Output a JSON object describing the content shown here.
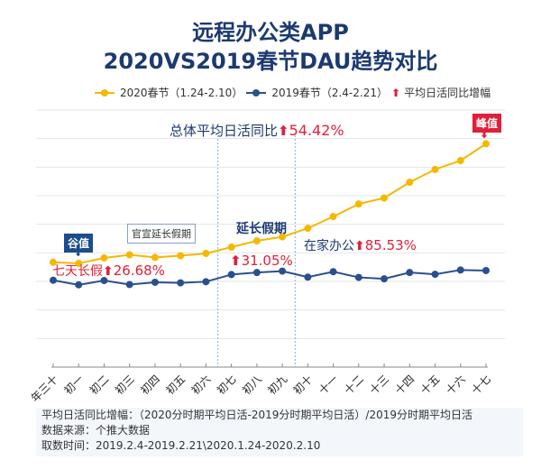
{
  "title": {
    "line1": "远程办公类APP",
    "line2": "2020VS2019春节DAU趋势对比"
  },
  "legend": [
    {
      "label": "2020春节（1.24-2.10）",
      "color": "#f5b800"
    },
    {
      "label": "2019春节（2.4-2.21）",
      "color": "#2a4f8f"
    },
    {
      "label": "平均日活同比增幅",
      "icon": "up-arrow-icon",
      "color": "#e0203a"
    }
  ],
  "annotations": {
    "overall_label": "总体平均日活同比",
    "overall_value": "54.42%",
    "peak": "峰值",
    "valley": "谷值",
    "official": "官宣延长假期",
    "seven_day_label": "七天长假",
    "seven_day_value": "26.68%",
    "extended_label": "延长假期",
    "extended_value": "31.05%",
    "home_label": "在家办公",
    "home_value": "85.53%"
  },
  "chart_data": {
    "type": "line",
    "title": "远程办公类APP 2020VS2019春节DAU趋势对比",
    "xlabel": "",
    "ylabel": "",
    "categories": [
      "年三十",
      "初一",
      "初二",
      "初三",
      "初四",
      "初五",
      "初六",
      "初七",
      "初八",
      "初九",
      "初十",
      "十一",
      "十二",
      "十三",
      "十四",
      "十五",
      "十六",
      "十七"
    ],
    "ylim": [
      0,
      9
    ],
    "grid": true,
    "legend": "top",
    "series": [
      {
        "name": "2020春节（1.24-2.10）",
        "color": "#f5b800",
        "values": [
          3.67,
          3.63,
          3.82,
          3.93,
          3.84,
          3.9,
          3.98,
          4.2,
          4.42,
          4.56,
          4.86,
          5.27,
          5.71,
          5.92,
          6.47,
          6.92,
          7.23,
          7.82
        ]
      },
      {
        "name": "2019春节（2.4-2.21）",
        "color": "#2a4f8f",
        "values": [
          3.04,
          2.88,
          3.03,
          2.89,
          2.97,
          2.95,
          2.99,
          3.24,
          3.31,
          3.36,
          3.15,
          3.34,
          3.14,
          3.09,
          3.31,
          3.25,
          3.4,
          3.38
        ]
      }
    ]
  },
  "footnote": {
    "line1": "平均日活同比增幅：（2020分时期平均日活-2019分时期平均日活）/2019分时期平均日活",
    "line2": "数据来源：个推大数据",
    "line3": "取数时间：2019.2.4-2019.2.21\\2020.1.24-2020.2.10"
  }
}
